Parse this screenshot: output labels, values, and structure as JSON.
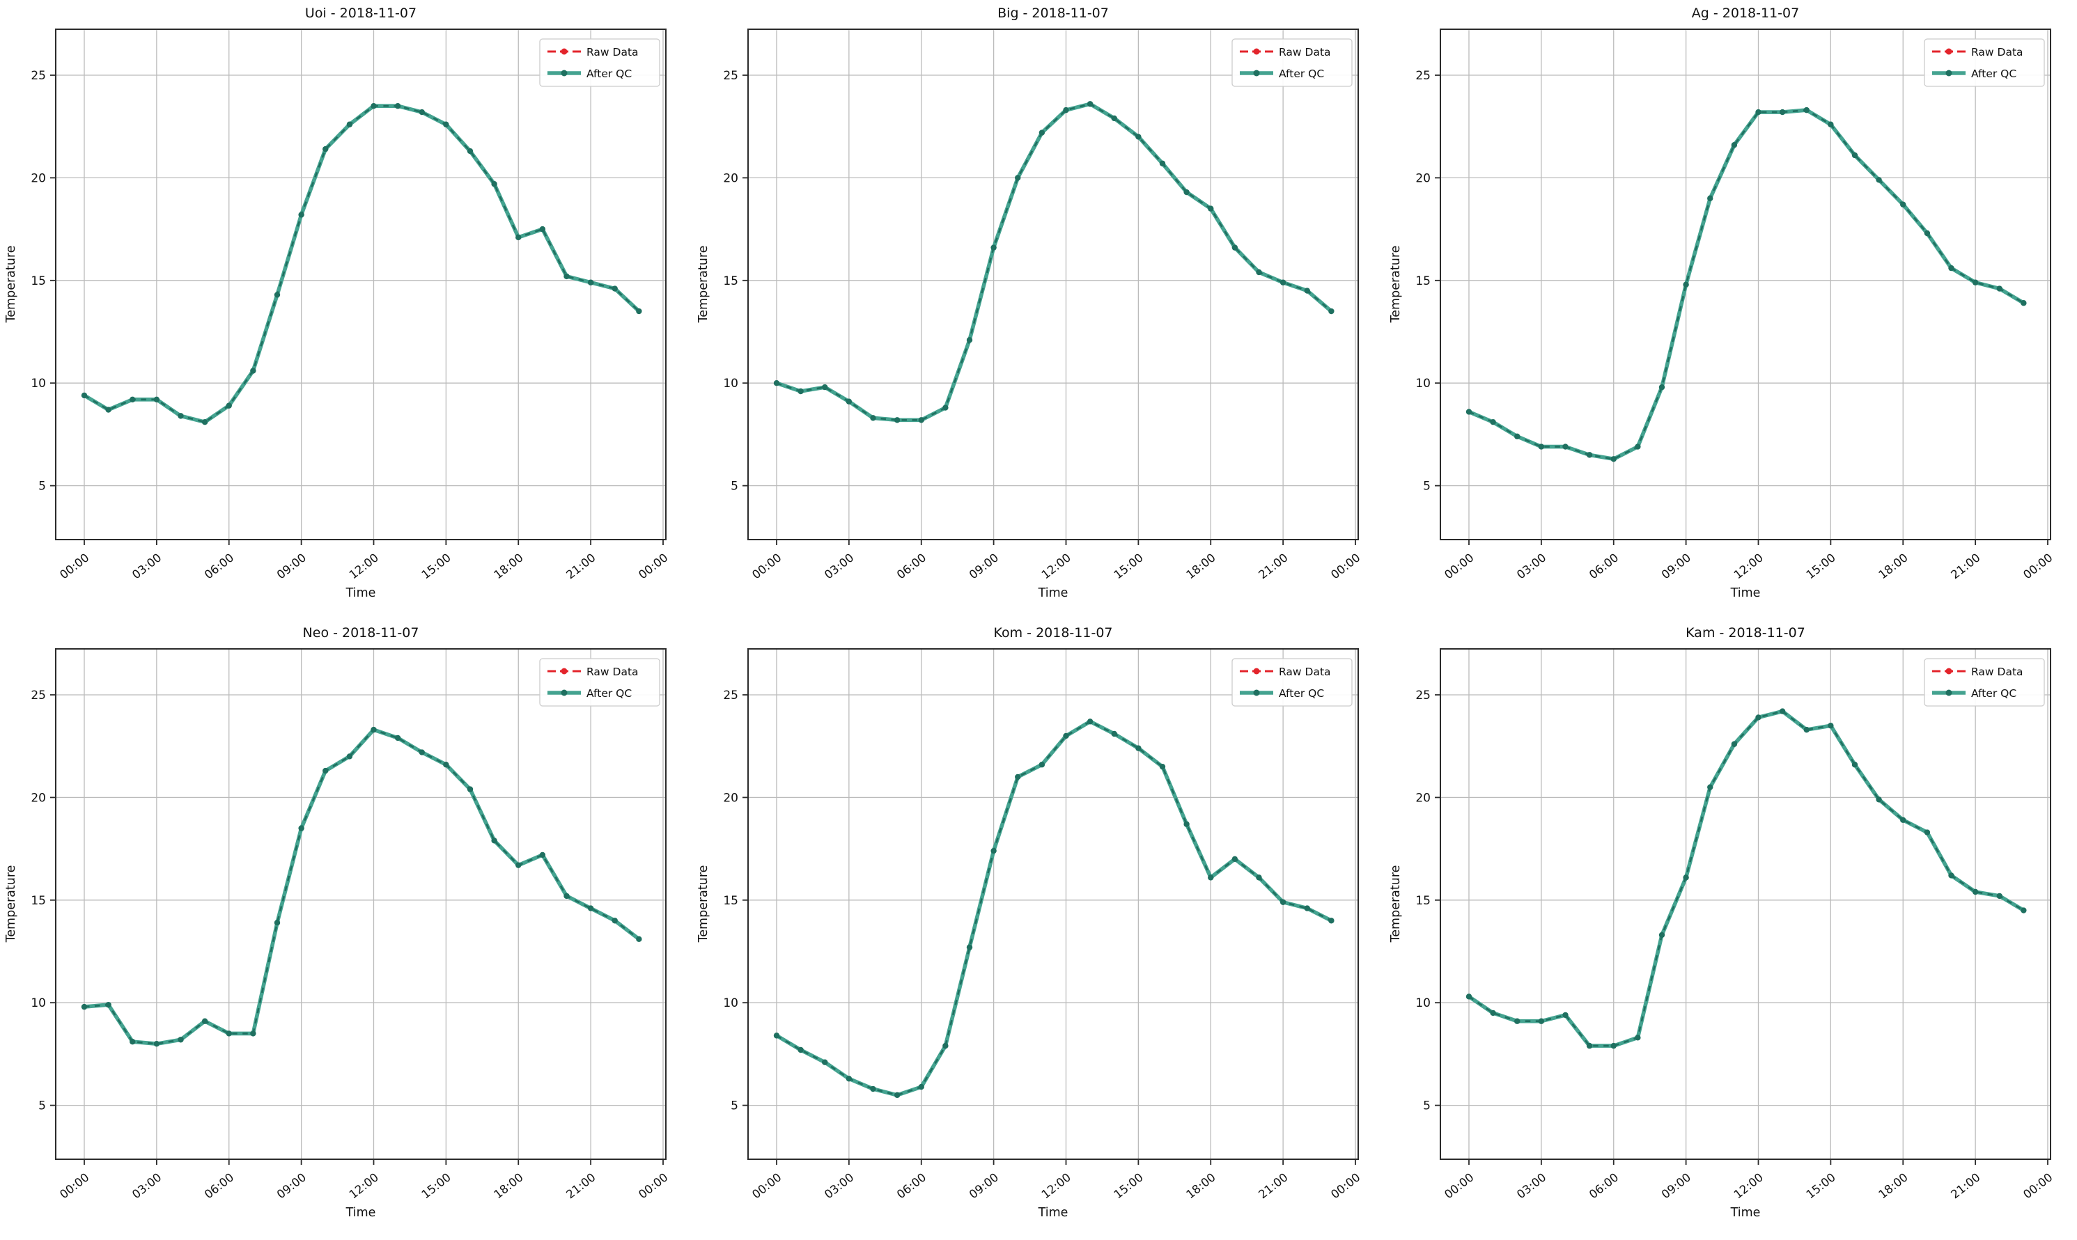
{
  "figure": {
    "xlabel": "Time",
    "ylabel": "Temperature",
    "x_tick_labels": [
      "00:00",
      "03:00",
      "06:00",
      "09:00",
      "12:00",
      "15:00",
      "18:00",
      "21:00",
      "00:00"
    ],
    "y_tick_values": [
      5,
      10,
      15,
      20,
      25
    ],
    "grid": true,
    "legend_position": "upper right",
    "legend": [
      {
        "label": "Raw Data",
        "color": "#E3242B",
        "line_style": "dotted",
        "marker": "circle"
      },
      {
        "label": "After QC",
        "color": "#44A390",
        "color_dark": "#1F7060",
        "line_style": "solid",
        "marker": "circle"
      }
    ],
    "colors": {
      "qc_line_light": "#44A390",
      "qc_line_dark": "#1F7060",
      "raw_red": "#E3242B",
      "grid_gray": "#BBBBBB",
      "spine": "#2B2B2B",
      "background": "#FFFFFF"
    }
  },
  "chart_data": [
    {
      "type": "line",
      "station": "Uoi",
      "date": "2018-11-07",
      "title": "Uoi - 2018-11-07",
      "xlabel": "Time",
      "ylabel": "Temperature",
      "x_hours": [
        0,
        1,
        2,
        3,
        4,
        5,
        6,
        7,
        8,
        9,
        10,
        11,
        12,
        13,
        14,
        15,
        16,
        17,
        18,
        19,
        20,
        21,
        22,
        23
      ],
      "xlim_hours": [
        -1.15,
        24.15
      ],
      "ylim": [
        2.4,
        27.2
      ],
      "series": [
        {
          "name": "Raw Data",
          "values": [
            9.4,
            8.7,
            9.2,
            9.2,
            8.4,
            8.1,
            8.9,
            10.6,
            14.3,
            18.2,
            21.4,
            22.6,
            23.5,
            23.5,
            23.2,
            22.6,
            21.3,
            19.7,
            17.1,
            17.5,
            15.2,
            14.9,
            14.6,
            13.5
          ],
          "hidden_under_qc": true
        },
        {
          "name": "After QC",
          "values": [
            9.4,
            8.7,
            9.2,
            9.2,
            8.4,
            8.1,
            8.9,
            10.6,
            14.3,
            18.2,
            21.4,
            22.6,
            23.5,
            23.5,
            23.2,
            22.6,
            21.3,
            19.7,
            17.1,
            17.5,
            15.2,
            14.9,
            14.6,
            13.5
          ]
        }
      ]
    },
    {
      "type": "line",
      "station": "Big",
      "date": "2018-11-07",
      "title": "Big - 2018-11-07",
      "xlabel": "Time",
      "ylabel": "Temperature",
      "x_hours": [
        0,
        1,
        2,
        3,
        4,
        5,
        6,
        7,
        8,
        9,
        10,
        11,
        12,
        13,
        14,
        15,
        16,
        17,
        18,
        19,
        20,
        21,
        22,
        23
      ],
      "xlim_hours": [
        -1.15,
        24.15
      ],
      "ylim": [
        2.4,
        27.2
      ],
      "series": [
        {
          "name": "Raw Data",
          "values": [
            10.0,
            9.6,
            9.8,
            9.1,
            8.3,
            8.2,
            8.2,
            8.8,
            12.1,
            16.6,
            20.0,
            22.2,
            23.3,
            23.6,
            22.9,
            22.0,
            20.7,
            19.3,
            18.5,
            16.6,
            15.4,
            14.9,
            14.5,
            13.5
          ],
          "hidden_under_qc": true
        },
        {
          "name": "After QC",
          "values": [
            10.0,
            9.6,
            9.8,
            9.1,
            8.3,
            8.2,
            8.2,
            8.8,
            12.1,
            16.6,
            20.0,
            22.2,
            23.3,
            23.6,
            22.9,
            22.0,
            20.7,
            19.3,
            18.5,
            16.6,
            15.4,
            14.9,
            14.5,
            13.5
          ]
        }
      ]
    },
    {
      "type": "line",
      "station": "Ag",
      "date": "2018-11-07",
      "title": "Ag - 2018-11-07",
      "xlabel": "Time",
      "ylabel": "Temperature",
      "x_hours": [
        0,
        1,
        2,
        3,
        4,
        5,
        6,
        7,
        8,
        9,
        10,
        11,
        12,
        13,
        14,
        15,
        16,
        17,
        18,
        19,
        20,
        21,
        22,
        23
      ],
      "xlim_hours": [
        -1.15,
        24.15
      ],
      "ylim": [
        2.4,
        27.2
      ],
      "series": [
        {
          "name": "Raw Data",
          "values": [
            8.6,
            8.1,
            7.4,
            6.9,
            6.9,
            6.5,
            6.3,
            6.9,
            9.8,
            14.8,
            19.0,
            21.6,
            23.2,
            23.2,
            23.3,
            22.6,
            21.1,
            19.9,
            18.7,
            17.3,
            15.6,
            14.9,
            14.6,
            13.9
          ],
          "hidden_under_qc": true
        },
        {
          "name": "After QC",
          "values": [
            8.6,
            8.1,
            7.4,
            6.9,
            6.9,
            6.5,
            6.3,
            6.9,
            9.8,
            14.8,
            19.0,
            21.6,
            23.2,
            23.2,
            23.3,
            22.6,
            21.1,
            19.9,
            18.7,
            17.3,
            15.6,
            14.9,
            14.6,
            13.9
          ]
        }
      ]
    },
    {
      "type": "line",
      "station": "Neo",
      "date": "2018-11-07",
      "title": "Neo - 2018-11-07",
      "xlabel": "Time",
      "ylabel": "Temperature",
      "x_hours": [
        0,
        1,
        2,
        3,
        4,
        5,
        6,
        7,
        8,
        9,
        10,
        11,
        12,
        13,
        14,
        15,
        16,
        17,
        18,
        19,
        20,
        21,
        22,
        23
      ],
      "xlim_hours": [
        -1.15,
        24.15
      ],
      "ylim": [
        2.4,
        27.2
      ],
      "series": [
        {
          "name": "Raw Data",
          "values": [
            9.8,
            9.9,
            8.1,
            8.0,
            8.2,
            9.1,
            8.5,
            8.5,
            13.9,
            18.5,
            21.3,
            22.0,
            23.3,
            22.9,
            22.2,
            21.6,
            20.4,
            17.9,
            16.7,
            17.2,
            15.2,
            14.6,
            14.0,
            13.1
          ],
          "hidden_under_qc": true
        },
        {
          "name": "After QC",
          "values": [
            9.8,
            9.9,
            8.1,
            8.0,
            8.2,
            9.1,
            8.5,
            8.5,
            13.9,
            18.5,
            21.3,
            22.0,
            23.3,
            22.9,
            22.2,
            21.6,
            20.4,
            17.9,
            16.7,
            17.2,
            15.2,
            14.6,
            14.0,
            13.1
          ]
        }
      ]
    },
    {
      "type": "line",
      "station": "Kom",
      "date": "2018-11-07",
      "title": "Kom - 2018-11-07",
      "xlabel": "Time",
      "ylabel": "Temperature",
      "x_hours": [
        0,
        1,
        2,
        3,
        4,
        5,
        6,
        7,
        8,
        9,
        10,
        11,
        12,
        13,
        14,
        15,
        16,
        17,
        18,
        19,
        20,
        21,
        22,
        23
      ],
      "xlim_hours": [
        -1.15,
        24.15
      ],
      "ylim": [
        2.4,
        27.2
      ],
      "series": [
        {
          "name": "Raw Data",
          "values": [
            8.4,
            7.7,
            7.1,
            6.3,
            5.8,
            5.5,
            5.9,
            7.9,
            12.7,
            17.4,
            21.0,
            21.6,
            23.0,
            23.7,
            23.1,
            22.4,
            21.5,
            18.7,
            16.1,
            17.0,
            16.1,
            14.9,
            14.6,
            14.0
          ],
          "hidden_under_qc": true
        },
        {
          "name": "After QC",
          "values": [
            8.4,
            7.7,
            7.1,
            6.3,
            5.8,
            5.5,
            5.9,
            7.9,
            12.7,
            17.4,
            21.0,
            21.6,
            23.0,
            23.7,
            23.1,
            22.4,
            21.5,
            18.7,
            16.1,
            17.0,
            16.1,
            14.9,
            14.6,
            14.0
          ]
        }
      ]
    },
    {
      "type": "line",
      "station": "Kam",
      "date": "2018-11-07",
      "title": "Kam - 2018-11-07",
      "xlabel": "Time",
      "ylabel": "Temperature",
      "x_hours": [
        0,
        1,
        2,
        3,
        4,
        5,
        6,
        7,
        8,
        9,
        10,
        11,
        12,
        13,
        14,
        15,
        16,
        17,
        18,
        19,
        20,
        21,
        22,
        23
      ],
      "xlim_hours": [
        -1.15,
        24.15
      ],
      "ylim": [
        2.4,
        27.2
      ],
      "series": [
        {
          "name": "Raw Data",
          "values": [
            10.3,
            9.5,
            9.1,
            9.1,
            9.4,
            7.9,
            7.9,
            8.3,
            13.3,
            16.1,
            20.5,
            22.6,
            23.9,
            24.2,
            23.3,
            23.5,
            21.6,
            19.9,
            18.9,
            18.3,
            16.2,
            15.4,
            15.2,
            14.5
          ],
          "hidden_under_qc": true
        },
        {
          "name": "After QC",
          "values": [
            10.3,
            9.5,
            9.1,
            9.1,
            9.4,
            7.9,
            7.9,
            8.3,
            13.3,
            16.1,
            20.5,
            22.6,
            23.9,
            24.2,
            23.3,
            23.5,
            21.6,
            19.9,
            18.9,
            18.3,
            16.2,
            15.4,
            15.2,
            14.5
          ]
        }
      ]
    }
  ]
}
